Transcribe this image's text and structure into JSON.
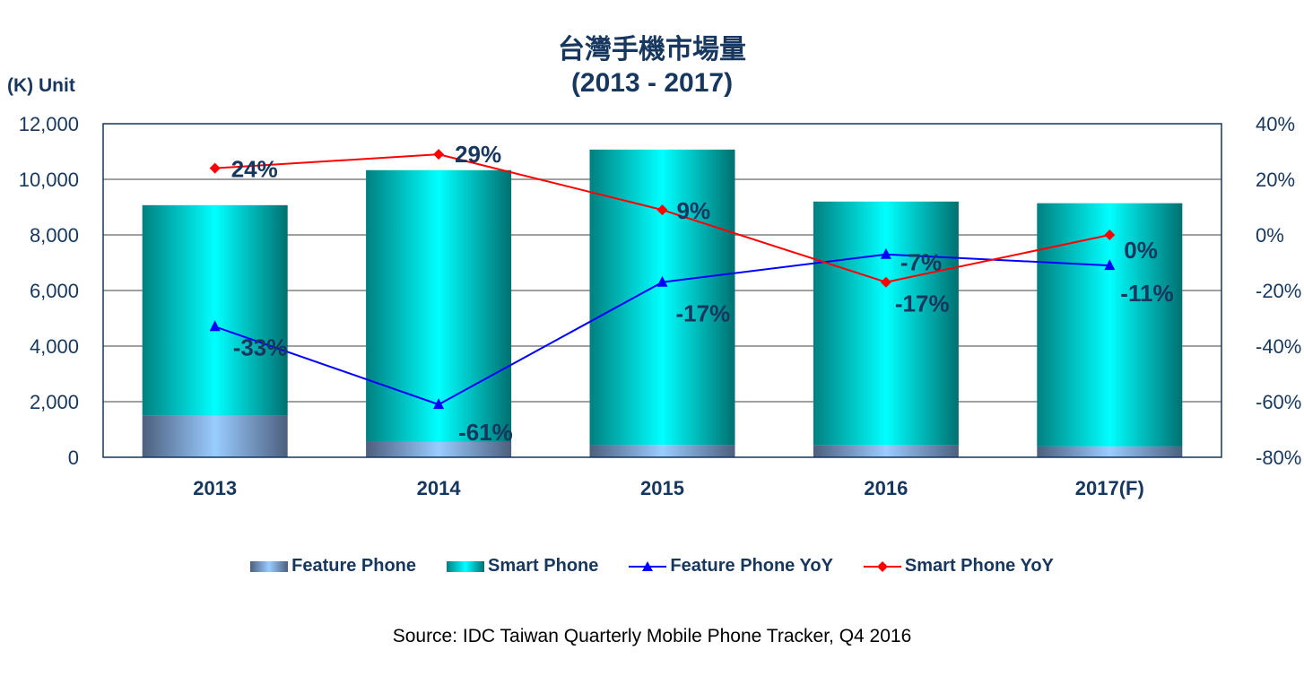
{
  "chart_data": {
    "type": "bar",
    "title": "台灣手機市場量",
    "subtitle": "(2013 - 2017)",
    "ylabel": "(K) Unit",
    "categories": [
      "2013",
      "2014",
      "2015",
      "2016",
      "2017(F)"
    ],
    "ylim": [
      0,
      12000
    ],
    "y_ticks": [
      "0",
      "2,000",
      "4,000",
      "6,000",
      "8,000",
      "10,000",
      "12,000"
    ],
    "y2lim": [
      -80,
      40
    ],
    "y2_ticks": [
      "-80%",
      "-60%",
      "-40%",
      "-20%",
      "0%",
      "20%",
      "40%"
    ],
    "stacked": true,
    "series": [
      {
        "name": "Feature Phone",
        "kind": "bar",
        "values": [
          1490,
          550,
          450,
          430,
          390
        ]
      },
      {
        "name": "Smart Phone",
        "kind": "bar",
        "values": [
          7580,
          9780,
          10620,
          8770,
          8750
        ]
      },
      {
        "name": "Feature Phone YoY",
        "kind": "line",
        "axis": "right",
        "values": [
          -33,
          -61,
          -17,
          -7,
          -11
        ],
        "labels": [
          "-33%",
          "-61%",
          "-17%",
          "-7%",
          "-11%"
        ],
        "color": "#0000ff"
      },
      {
        "name": "Smart Phone YoY",
        "kind": "line",
        "axis": "right",
        "values": [
          24,
          29,
          9,
          -17,
          0
        ],
        "labels": [
          "24%",
          "29%",
          "9%",
          "-17%",
          "0%"
        ],
        "color": "#ff0000"
      }
    ],
    "grid": true,
    "legend_placement": "bottom",
    "source": "Source: IDC Taiwan Quarterly Mobile Phone Tracker, Q4 2016"
  }
}
